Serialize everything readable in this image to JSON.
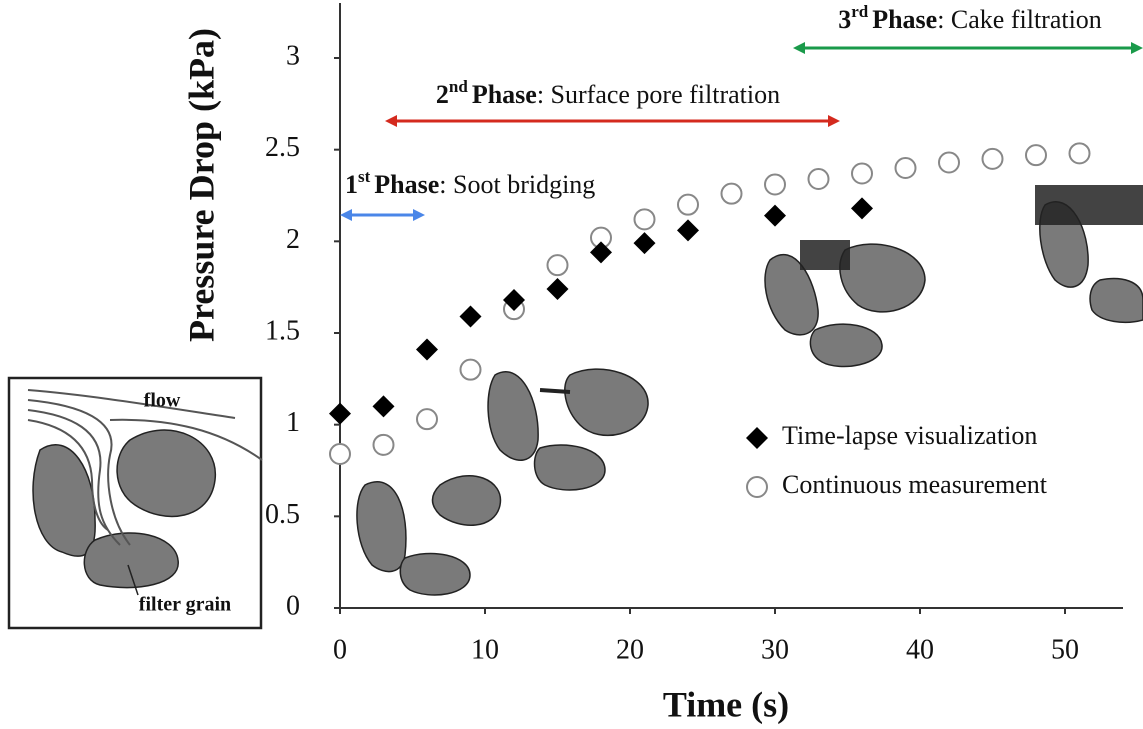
{
  "chart_data": {
    "type": "scatter",
    "x_label": "Time (s)",
    "y_label": "Pressure Drop (kPa)",
    "xlim": [
      0,
      54
    ],
    "ylim": [
      0,
      3.3
    ],
    "xticks": [
      0,
      10,
      20,
      30,
      40,
      50
    ],
    "yticks": [
      0,
      0.5,
      1,
      1.5,
      2,
      2.5,
      3
    ],
    "grid": false,
    "legend": "lower right",
    "series": [
      {
        "name": "Time-lapse visualization",
        "marker": "diamond",
        "color": "#000000",
        "x": [
          0,
          3,
          6,
          9,
          12,
          15,
          18,
          21,
          24,
          30,
          36
        ],
        "values": [
          1.06,
          1.1,
          1.41,
          1.59,
          1.68,
          1.74,
          1.94,
          1.99,
          2.06,
          2.14,
          2.18
        ]
      },
      {
        "name": "Continuous measurement",
        "marker": "circle",
        "color": "#888888",
        "x": [
          0,
          3,
          6,
          9,
          12,
          15,
          18,
          21,
          24,
          27,
          30,
          33,
          36,
          39,
          42,
          45,
          48,
          51
        ],
        "values": [
          0.84,
          0.89,
          1.03,
          1.3,
          1.63,
          1.87,
          2.02,
          2.12,
          2.2,
          2.26,
          2.31,
          2.34,
          2.37,
          2.4,
          2.43,
          2.45,
          2.47,
          2.48
        ]
      }
    ],
    "annotations": [
      {
        "number": "1",
        "suffix": "st",
        "label": "Phase",
        "text": ": Soot bridging",
        "color": "#4a86e8"
      },
      {
        "number": "2",
        "suffix": "nd",
        "label": "Phase",
        "text": ": Surface pore filtration",
        "color": "#d42a1e"
      },
      {
        "number": "3",
        "suffix": "rd",
        "label": "Phase",
        "text": ": Cake filtration",
        "color": "#1a9a4a"
      }
    ],
    "inset_labels": [
      "flow",
      "filter grain"
    ]
  }
}
